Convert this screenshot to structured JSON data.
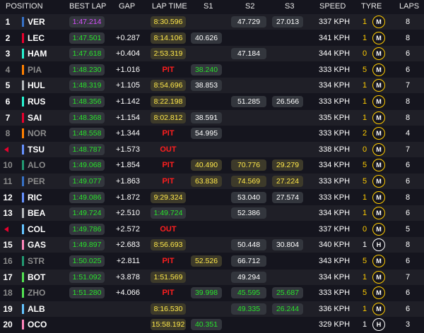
{
  "headers": {
    "position": "POSITION",
    "best_lap": "BEST LAP",
    "gap": "GAP",
    "lap_time": "LAP TIME",
    "s1": "S1",
    "s2": "S2",
    "s3": "S3",
    "speed": "SPEED",
    "tyre": "TYRE",
    "laps": "LAPS"
  },
  "colors": {
    "purple": "#d84fff",
    "green": "#29e22b",
    "yellow": "#ffe84a",
    "pit": "#ff1e1e",
    "medium": "#ffcc00",
    "hard": "#ffffff"
  },
  "rows": [
    {
      "pos": "1",
      "dim": false,
      "driver": "VER",
      "team_color": "#3671c6",
      "best": "1:47.214",
      "best_c": "purple",
      "gap": "",
      "lt": "8:30.596",
      "lt_c": "yellow",
      "status": "",
      "s1": "",
      "s1_c": "",
      "s2": "47.729",
      "s2_c": "white",
      "s3": "27.013",
      "s3_c": "white",
      "speed": "337 KPH",
      "tyre_laps": "1",
      "compound": "M",
      "laps": "8"
    },
    {
      "pos": "2",
      "dim": false,
      "driver": "LEC",
      "team_color": "#e8002d",
      "best": "1:47.501",
      "best_c": "green",
      "gap": "+0.287",
      "lt": "8:14.106",
      "lt_c": "yellow",
      "status": "",
      "s1": "40.626",
      "s1_c": "white",
      "s2": "",
      "s2_c": "",
      "s3": "",
      "s3_c": "",
      "speed": "341 KPH",
      "tyre_laps": "1",
      "compound": "M",
      "laps": "8"
    },
    {
      "pos": "3",
      "dim": false,
      "driver": "HAM",
      "team_color": "#27f4d2",
      "best": "1:47.618",
      "best_c": "green",
      "gap": "+0.404",
      "lt": "2:53.319",
      "lt_c": "yellow",
      "status": "",
      "s1": "",
      "s1_c": "",
      "s2": "47.184",
      "s2_c": "white",
      "s3": "",
      "s3_c": "",
      "speed": "344 KPH",
      "tyre_laps": "0",
      "compound": "M",
      "laps": "6"
    },
    {
      "pos": "4",
      "dim": true,
      "driver": "PIA",
      "team_color": "#ff8000",
      "best": "1:48.230",
      "best_c": "green",
      "gap": "+1.016",
      "lt": "",
      "lt_c": "",
      "status": "PIT",
      "s1": "38.240",
      "s1_c": "green",
      "s2": "",
      "s2_c": "",
      "s3": "",
      "s3_c": "",
      "speed": "333 KPH",
      "tyre_laps": "5",
      "compound": "M",
      "laps": "6"
    },
    {
      "pos": "5",
      "dim": false,
      "driver": "HUL",
      "team_color": "#b6babd",
      "best": "1:48.319",
      "best_c": "green",
      "gap": "+1.105",
      "lt": "8:54.696",
      "lt_c": "yellow",
      "status": "",
      "s1": "38.853",
      "s1_c": "white",
      "s2": "",
      "s2_c": "",
      "s3": "",
      "s3_c": "",
      "speed": "334 KPH",
      "tyre_laps": "1",
      "compound": "M",
      "laps": "7"
    },
    {
      "pos": "6",
      "dim": false,
      "driver": "RUS",
      "team_color": "#27f4d2",
      "best": "1:48.356",
      "best_c": "green",
      "gap": "+1.142",
      "lt": "8:22.198",
      "lt_c": "yellow",
      "status": "",
      "s1": "",
      "s1_c": "",
      "s2": "51.285",
      "s2_c": "white",
      "s3": "26.566",
      "s3_c": "white",
      "speed": "333 KPH",
      "tyre_laps": "1",
      "compound": "M",
      "laps": "8"
    },
    {
      "pos": "7",
      "dim": false,
      "driver": "SAI",
      "team_color": "#e8002d",
      "best": "1:48.368",
      "best_c": "green",
      "gap": "+1.154",
      "lt": "8:02.812",
      "lt_c": "yellow",
      "status": "",
      "s1": "38.591",
      "s1_c": "white",
      "s2": "",
      "s2_c": "",
      "s3": "",
      "s3_c": "",
      "speed": "335 KPH",
      "tyre_laps": "1",
      "compound": "M",
      "laps": "8"
    },
    {
      "pos": "8",
      "dim": true,
      "driver": "NOR",
      "team_color": "#ff8000",
      "best": "1:48.558",
      "best_c": "green",
      "gap": "+1.344",
      "lt": "",
      "lt_c": "",
      "status": "PIT",
      "s1": "54.995",
      "s1_c": "white",
      "s2": "",
      "s2_c": "",
      "s3": "",
      "s3_c": "",
      "speed": "333 KPH",
      "tyre_laps": "2",
      "compound": "M",
      "laps": "4"
    },
    {
      "pos": "",
      "dim": false,
      "retired": true,
      "driver": "TSU",
      "team_color": "#6692ff",
      "best": "1:48.787",
      "best_c": "green",
      "gap": "+1.573",
      "lt": "",
      "lt_c": "",
      "status": "OUT",
      "s1": "",
      "s1_c": "",
      "s2": "",
      "s2_c": "",
      "s3": "",
      "s3_c": "",
      "speed": "338 KPH",
      "tyre_laps": "0",
      "compound": "M",
      "laps": "7"
    },
    {
      "pos": "10",
      "dim": true,
      "driver": "ALO",
      "team_color": "#229971",
      "best": "1:49.068",
      "best_c": "green",
      "gap": "+1.854",
      "lt": "",
      "lt_c": "",
      "status": "PIT",
      "s1": "40.490",
      "s1_c": "yellow",
      "s2": "70.776",
      "s2_c": "yellow",
      "s3": "29.279",
      "s3_c": "yellow",
      "speed": "334 KPH",
      "tyre_laps": "5",
      "compound": "M",
      "laps": "6"
    },
    {
      "pos": "11",
      "dim": true,
      "driver": "PER",
      "team_color": "#3671c6",
      "best": "1:49.077",
      "best_c": "green",
      "gap": "+1.863",
      "lt": "",
      "lt_c": "",
      "status": "PIT",
      "s1": "63.838",
      "s1_c": "yellow",
      "s2": "74.569",
      "s2_c": "yellow",
      "s3": "27.224",
      "s3_c": "yellow",
      "speed": "333 KPH",
      "tyre_laps": "5",
      "compound": "M",
      "laps": "6"
    },
    {
      "pos": "12",
      "dim": false,
      "driver": "RIC",
      "team_color": "#6692ff",
      "best": "1:49.086",
      "best_c": "green",
      "gap": "+1.872",
      "lt": "9:29.324",
      "lt_c": "yellow",
      "status": "",
      "s1": "",
      "s1_c": "",
      "s2": "53.040",
      "s2_c": "white",
      "s3": "27.574",
      "s3_c": "white",
      "speed": "333 KPH",
      "tyre_laps": "1",
      "compound": "M",
      "laps": "8"
    },
    {
      "pos": "13",
      "dim": false,
      "driver": "BEA",
      "team_color": "#b6babd",
      "best": "1:49.724",
      "best_c": "green",
      "gap": "+2.510",
      "lt": "1:49.724",
      "lt_c": "green",
      "status": "",
      "s1": "",
      "s1_c": "",
      "s2": "52.386",
      "s2_c": "white",
      "s3": "",
      "s3_c": "",
      "speed": "334 KPH",
      "tyre_laps": "1",
      "compound": "M",
      "laps": "6"
    },
    {
      "pos": "",
      "dim": false,
      "retired": true,
      "driver": "COL",
      "team_color": "#64c4ff",
      "best": "1:49.786",
      "best_c": "green",
      "gap": "+2.572",
      "lt": "",
      "lt_c": "",
      "status": "OUT",
      "s1": "",
      "s1_c": "",
      "s2": "",
      "s2_c": "",
      "s3": "",
      "s3_c": "",
      "speed": "337 KPH",
      "tyre_laps": "0",
      "compound": "M",
      "laps": "5"
    },
    {
      "pos": "15",
      "dim": false,
      "driver": "GAS",
      "team_color": "#ff87bc",
      "best": "1:49.897",
      "best_c": "green",
      "gap": "+2.683",
      "lt": "8:56.693",
      "lt_c": "yellow",
      "status": "",
      "s1": "",
      "s1_c": "",
      "s2": "50.448",
      "s2_c": "white",
      "s3": "30.804",
      "s3_c": "white",
      "speed": "340 KPH",
      "tyre_laps": "1",
      "compound": "H",
      "laps": "8"
    },
    {
      "pos": "16",
      "dim": true,
      "driver": "STR",
      "team_color": "#229971",
      "best": "1:50.025",
      "best_c": "green",
      "gap": "+2.811",
      "lt": "",
      "lt_c": "",
      "status": "PIT",
      "s1": "52.526",
      "s1_c": "yellow",
      "s2": "66.712",
      "s2_c": "white",
      "s3": "",
      "s3_c": "",
      "speed": "343 KPH",
      "tyre_laps": "5",
      "compound": "M",
      "laps": "6"
    },
    {
      "pos": "17",
      "dim": false,
      "driver": "BOT",
      "team_color": "#52e252",
      "best": "1:51.092",
      "best_c": "green",
      "gap": "+3.878",
      "lt": "1:51.569",
      "lt_c": "yellow",
      "status": "",
      "s1": "",
      "s1_c": "",
      "s2": "49.294",
      "s2_c": "white",
      "s3": "",
      "s3_c": "",
      "speed": "334 KPH",
      "tyre_laps": "1",
      "compound": "M",
      "laps": "7"
    },
    {
      "pos": "18",
      "dim": true,
      "driver": "ZHO",
      "team_color": "#52e252",
      "best": "1:51.280",
      "best_c": "green",
      "gap": "+4.066",
      "lt": "",
      "lt_c": "",
      "status": "PIT",
      "s1": "39.998",
      "s1_c": "green",
      "s2": "45.595",
      "s2_c": "green",
      "s3": "25.687",
      "s3_c": "green",
      "speed": "333 KPH",
      "tyre_laps": "5",
      "compound": "M",
      "laps": "6"
    },
    {
      "pos": "19",
      "dim": false,
      "driver": "ALB",
      "team_color": "#64c4ff",
      "best": "",
      "best_c": "",
      "gap": "",
      "lt": "8:16.530",
      "lt_c": "yellow",
      "status": "",
      "s1": "",
      "s1_c": "",
      "s2": "49.335",
      "s2_c": "green",
      "s3": "26.244",
      "s3_c": "green",
      "speed": "336 KPH",
      "tyre_laps": "1",
      "compound": "M",
      "laps": "6"
    },
    {
      "pos": "20",
      "dim": false,
      "driver": "OCO",
      "team_color": "#ff87bc",
      "best": "",
      "best_c": "",
      "gap": "",
      "lt": "15:58.192",
      "lt_c": "yellow",
      "status": "",
      "s1": "40.351",
      "s1_c": "green",
      "s2": "",
      "s2_c": "",
      "s3": "",
      "s3_c": "",
      "speed": "329 KPH",
      "tyre_laps": "1",
      "compound": "H",
      "laps": "3"
    }
  ]
}
